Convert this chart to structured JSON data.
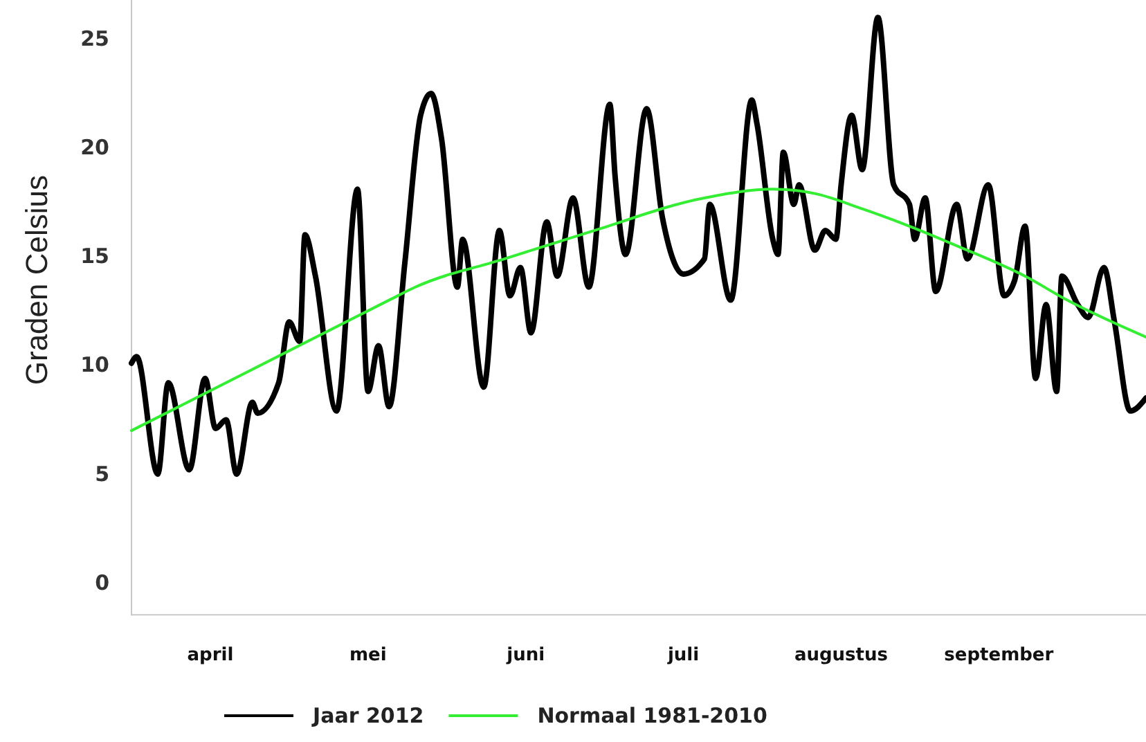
{
  "chart_data": {
    "type": "line",
    "ylabel": "Graden Celsius",
    "xlim": [
      "2012-03-31",
      "2012-10-10"
    ],
    "ylim": [
      -1.5,
      26.8
    ],
    "yticks": [
      0,
      5,
      10,
      15,
      20,
      25
    ],
    "xticks": [
      {
        "value": "2012-04-15",
        "label": "april"
      },
      {
        "value": "2012-05-15",
        "label": "mei"
      },
      {
        "value": "2012-06-14",
        "label": "juni"
      },
      {
        "value": "2012-07-14",
        "label": "juli"
      },
      {
        "value": "2012-08-13",
        "label": "augustus"
      },
      {
        "value": "2012-09-12",
        "label": "september"
      }
    ],
    "grid": false,
    "legend": "bottom",
    "marker": "none",
    "line_style": "solid",
    "series": [
      {
        "name": "Jaar 2012",
        "color": "#000000",
        "x": [
          "2012-03-31",
          "2012-04-01",
          "2012-04-05",
          "2012-04-07",
          "2012-04-11",
          "2012-04-14",
          "2012-04-16",
          "2012-04-18",
          "2012-04-20",
          "2012-04-23",
          "2012-04-24",
          "2012-04-28",
          "2012-04-30",
          "2012-05-02",
          "2012-05-03",
          "2012-05-05",
          "2012-05-09",
          "2012-05-13",
          "2012-05-15",
          "2012-05-17",
          "2012-05-19",
          "2012-05-22",
          "2012-05-25",
          "2012-05-27",
          "2012-05-29",
          "2012-06-01",
          "2012-06-02",
          "2012-06-06",
          "2012-06-09",
          "2012-06-11",
          "2012-06-13",
          "2012-06-15",
          "2012-06-18",
          "2012-06-20",
          "2012-06-23",
          "2012-06-26",
          "2012-06-30",
          "2012-07-01",
          "2012-07-03",
          "2012-07-07",
          "2012-07-10",
          "2012-07-14",
          "2012-07-18",
          "2012-07-19",
          "2012-07-23",
          "2012-07-27",
          "2012-07-28",
          "2012-07-31",
          "2012-08-01",
          "2012-08-02",
          "2012-08-04",
          "2012-08-05",
          "2012-08-08",
          "2012-08-10",
          "2012-08-12",
          "2012-08-13",
          "2012-08-15",
          "2012-08-17",
          "2012-08-20",
          "2012-08-23",
          "2012-08-26",
          "2012-08-27",
          "2012-08-29",
          "2012-08-31",
          "2012-09-04",
          "2012-09-06",
          "2012-09-10",
          "2012-09-13",
          "2012-09-15",
          "2012-09-17",
          "2012-09-19",
          "2012-09-21",
          "2012-09-23",
          "2012-09-24",
          "2012-09-27",
          "2012-09-29",
          "2012-10-02",
          "2012-10-04",
          "2012-10-07",
          "2012-10-10"
        ],
        "values": [
          10.1,
          10.4,
          5.0,
          9.2,
          5.2,
          9.4,
          7.1,
          7.5,
          5.0,
          8.3,
          7.8,
          9.2,
          12.0,
          11.1,
          16.0,
          14.1,
          7.9,
          18.1,
          8.8,
          10.9,
          8.1,
          14.7,
          21.5,
          22.5,
          20.4,
          13.6,
          15.8,
          9.0,
          16.2,
          13.2,
          14.5,
          11.5,
          16.6,
          14.1,
          17.7,
          13.6,
          22.0,
          18.7,
          15.1,
          21.8,
          16.8,
          14.2,
          14.9,
          17.4,
          13.0,
          22.2,
          21.1,
          15.8,
          15.1,
          19.8,
          17.4,
          18.3,
          15.3,
          16.2,
          15.8,
          18.3,
          21.5,
          19.0,
          26.0,
          18.3,
          17.4,
          15.8,
          17.7,
          13.4,
          17.4,
          14.9,
          18.3,
          13.2,
          13.9,
          16.4,
          9.4,
          12.8,
          8.8,
          14.1,
          12.8,
          12.2,
          14.5,
          12.0,
          7.9,
          8.5
        ]
      },
      {
        "name": "Normaal 1981-2010",
        "color": "#33ee33",
        "x": [
          "2012-03-31",
          "2012-05-19",
          "2012-05-24",
          "2012-06-10",
          "2012-06-27",
          "2012-07-18",
          "2012-07-31",
          "2012-08-08",
          "2012-08-17",
          "2012-08-26",
          "2012-09-04",
          "2012-09-17",
          "2012-09-25",
          "2012-10-10"
        ],
        "values": [
          7.0,
          13.0,
          13.6,
          14.9,
          16.2,
          17.7,
          18.1,
          17.9,
          17.2,
          16.4,
          15.5,
          14.1,
          13.0,
          11.3
        ]
      }
    ]
  }
}
